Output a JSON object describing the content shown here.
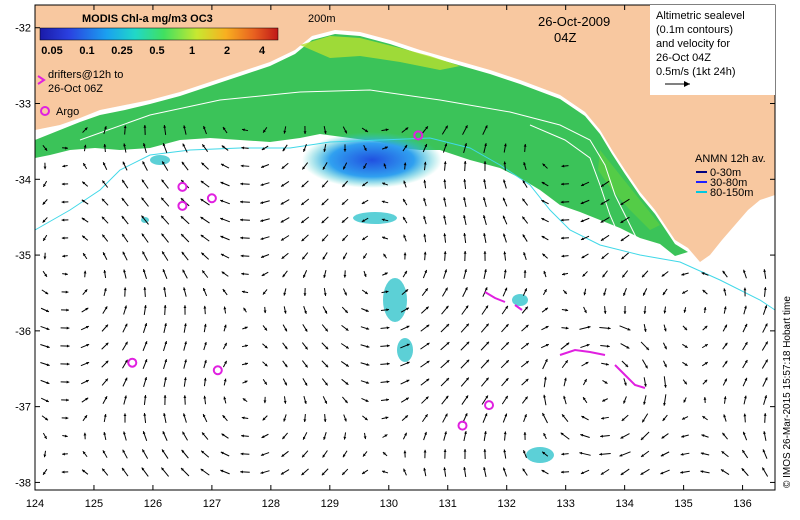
{
  "title": "MODIS Chl-a mg/m3 OC3",
  "colorbar": {
    "ticks": [
      "0.05",
      "0.1",
      "0.25",
      "0.5",
      "1",
      "2",
      "4"
    ],
    "colors": [
      "#1a1aa8",
      "#2a40e0",
      "#1aa0f0",
      "#20d8c8",
      "#40e060",
      "#c8e830",
      "#f8b020",
      "#e86020",
      "#c01818"
    ]
  },
  "contour_label": "200m",
  "date": "26-Oct-2009",
  "time": "04Z",
  "legend_top_right": {
    "lines": [
      "Altimetric sealevel",
      "(0.1m contours)",
      "and velocity for",
      "26-Oct 04Z"
    ],
    "scale": "0.5m/s (1kt 24h)"
  },
  "drifters_label": [
    "drifters@12h to",
    "26-Oct 06Z"
  ],
  "argo_label": "Argo",
  "anmn": {
    "title": "ANMN 12h av.",
    "items": [
      {
        "label": "0-30m",
        "color": "#000080"
      },
      {
        "label": "30-80m",
        "color": "#2020ff"
      },
      {
        "label": "80-150m",
        "color": "#00c8e0"
      }
    ]
  },
  "x_ticks": [
    "124",
    "125",
    "126",
    "127",
    "128",
    "129",
    "130",
    "131",
    "132",
    "133",
    "134",
    "135",
    "136"
  ],
  "y_ticks": [
    "-32",
    "-33",
    "-34",
    "-35",
    "-36",
    "-37",
    "-38"
  ],
  "credit": "© IMOS 26-Mar-2015 15:57:18 Hobart time",
  "colors": {
    "land": "#f8c8a0",
    "contour": "#40d8e8",
    "argo": "#e020e0",
    "drifter": "#e020e0"
  },
  "argo_floats": [
    {
      "lon": 126.5,
      "lat": -34.1
    },
    {
      "lon": 126.5,
      "lat": -34.35
    },
    {
      "lon": 127.0,
      "lat": -34.25
    },
    {
      "lon": 125.65,
      "lat": -36.42
    },
    {
      "lon": 127.1,
      "lat": -36.52
    },
    {
      "lon": 130.5,
      "lat": -33.42
    },
    {
      "lon": 131.7,
      "lat": -36.98
    },
    {
      "lon": 131.25,
      "lat": -37.25
    }
  ]
}
